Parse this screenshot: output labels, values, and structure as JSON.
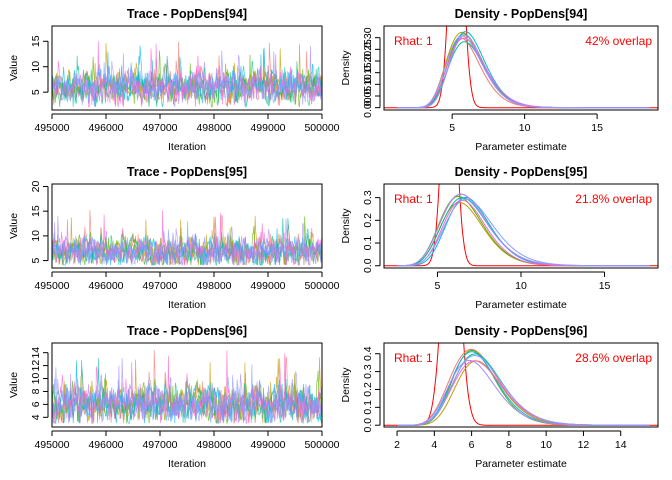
{
  "figure": {
    "background": "#ffffff"
  },
  "series_colors": [
    "#F8766D",
    "#C49A00",
    "#53B400",
    "#00C094",
    "#00B6EB",
    "#A58AFF",
    "#FB61D7",
    "#8C9BFF"
  ],
  "prior_color": "#FF0000",
  "chart_data": [
    {
      "type": "line",
      "title": "Trace - PopDens[94]",
      "xlabel": "Iteration",
      "ylabel": "Value",
      "xlim": [
        495000,
        500000
      ],
      "ylim": [
        1.5,
        18
      ],
      "xticks": [
        495000,
        496000,
        497000,
        498000,
        499000,
        500000
      ],
      "yticks": [
        5,
        10,
        15
      ],
      "chains": 8,
      "trace_mean": 6.0,
      "trace_sd": 1.4,
      "trace_max": 17.5
    },
    {
      "type": "line",
      "title": "Density - PopDens[94]",
      "xlabel": "Parameter estimate",
      "ylabel": "Density",
      "xlim": [
        0.3,
        19.2
      ],
      "ylim": [
        -0.01,
        0.35
      ],
      "xticks": [
        5,
        10,
        15
      ],
      "yticks": [
        0.0,
        0.05,
        0.1,
        0.15,
        0.2,
        0.25,
        0.3
      ],
      "rhat_label": "Rhat: 1",
      "overlap_label": "42% overlap",
      "chains": 8,
      "posterior_mode": 5.8,
      "posterior_peak": 0.31,
      "prior_mode": 5.3,
      "prior_sd": 0.45
    },
    {
      "type": "line",
      "title": "Trace - PopDens[95]",
      "xlabel": "Iteration",
      "ylabel": "Value",
      "xlim": [
        495000,
        500000
      ],
      "ylim": [
        3.5,
        20.5
      ],
      "xticks": [
        495000,
        496000,
        497000,
        498000,
        499000,
        500000
      ],
      "yticks": [
        5,
        10,
        15,
        20
      ],
      "chains": 8,
      "trace_mean": 6.8,
      "trace_sd": 1.3,
      "trace_max": 19.5
    },
    {
      "type": "line",
      "title": "Density - PopDens[95]",
      "xlabel": "Parameter estimate",
      "ylabel": "Density",
      "xlim": [
        1.8,
        18.2
      ],
      "ylim": [
        -0.01,
        0.36
      ],
      "xticks": [
        5,
        10,
        15
      ],
      "yticks": [
        0.0,
        0.1,
        0.2,
        0.3
      ],
      "rhat_label": "Rhat: 1",
      "overlap_label": "21.8% overlap",
      "chains": 8,
      "posterior_mode": 6.5,
      "posterior_peak": 0.3,
      "prior_mode": 5.7,
      "prior_sd": 0.4
    },
    {
      "type": "line",
      "title": "Trace - PopDens[96]",
      "xlabel": "Iteration",
      "ylabel": "Value",
      "xlim": [
        495000,
        500000
      ],
      "ylim": [
        2.5,
        15.5
      ],
      "xticks": [
        495000,
        496000,
        497000,
        498000,
        499000,
        500000
      ],
      "yticks": [
        4,
        6,
        8,
        10,
        12,
        14
      ],
      "chains": 8,
      "trace_mean": 6.0,
      "trace_sd": 1.3,
      "trace_max": 14.8
    },
    {
      "type": "line",
      "title": "Density - PopDens[96]",
      "xlabel": "Parameter estimate",
      "ylabel": "Density",
      "xlim": [
        1.3,
        16.0
      ],
      "ylim": [
        -0.01,
        0.46
      ],
      "xticks": [
        2,
        4,
        6,
        8,
        10,
        12,
        14
      ],
      "yticks": [
        0.0,
        0.1,
        0.2,
        0.3,
        0.4
      ],
      "rhat_label": "Rhat: 1",
      "overlap_label": "28.6% overlap",
      "chains": 8,
      "posterior_mode": 6.1,
      "posterior_peak": 0.4,
      "prior_mode": 4.9,
      "prior_sd": 0.45
    }
  ]
}
